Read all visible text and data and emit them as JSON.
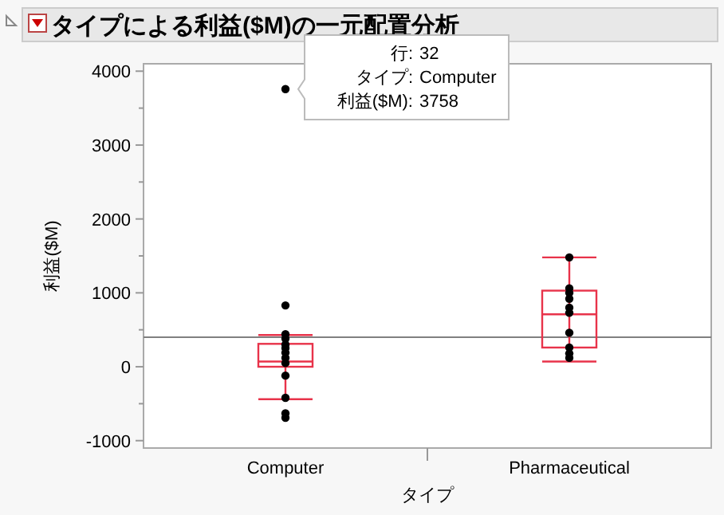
{
  "chart_data": {
    "type": "box",
    "title": "タイプによる利益($M)の一元配置分析",
    "xlabel": "タイプ",
    "ylabel": "利益($M)",
    "categories": [
      "Computer",
      "Pharmaceutical"
    ],
    "series": [
      {
        "color": "#e8334a",
        "boxes": [
          {
            "low": -440,
            "q1": 0,
            "median": 70,
            "q3": 310,
            "high": 430
          },
          {
            "low": 70,
            "q1": 260,
            "median": 710,
            "q3": 1030,
            "high": 1480
          }
        ]
      },
      {
        "type": "scatter",
        "color": "#000000",
        "marker": "circle",
        "x": [
          "Computer",
          "Computer",
          "Computer",
          "Computer",
          "Computer",
          "Computer",
          "Computer",
          "Computer",
          "Computer",
          "Computer",
          "Computer",
          "Computer",
          "Computer",
          "Pharmaceutical",
          "Pharmaceutical",
          "Pharmaceutical",
          "Pharmaceutical",
          "Pharmaceutical",
          "Pharmaceutical",
          "Pharmaceutical",
          "Pharmaceutical",
          "Pharmaceutical",
          "Pharmaceutical"
        ],
        "values": [
          3758,
          830,
          440,
          380,
          300,
          250,
          190,
          120,
          50,
          -120,
          -420,
          -630,
          -690,
          1480,
          1060,
          1000,
          920,
          800,
          730,
          460,
          260,
          180,
          120
        ]
      }
    ],
    "ylim": [
      -1100,
      4100
    ],
    "yticks": [
      -1000,
      {
        "value": -500,
        "label": null
      },
      0,
      {
        "value": 500,
        "label": null
      },
      1000,
      {
        "value": 1500,
        "label": null
      },
      2000,
      {
        "value": 2500,
        "label": null
      },
      3000,
      {
        "value": 3500,
        "label": null
      },
      4000
    ],
    "ref_lines": [
      {
        "axis": "y",
        "value": 400,
        "color": "#808080"
      }
    ],
    "annotations": [
      {
        "text": "行: 32\nタイプ: Computer\n利益($M): 3758",
        "x": "Computer",
        "y": 3758
      }
    ]
  }
}
